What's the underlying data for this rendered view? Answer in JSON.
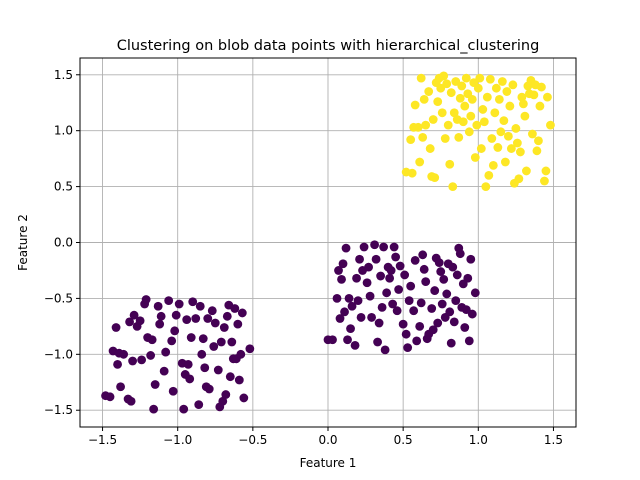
{
  "chart_data": {
    "type": "scatter",
    "title": "Clustering on blob data points with hierarchical_clustering",
    "xlabel": "Feature 1",
    "ylabel": "Feature 2",
    "xlim": [
      -1.65,
      1.65
    ],
    "ylim": [
      -1.65,
      1.65
    ],
    "xticks": [
      -1.5,
      -1.0,
      -0.5,
      0.0,
      0.5,
      1.0,
      1.5
    ],
    "yticks": [
      -1.5,
      -1.0,
      -0.5,
      0.0,
      0.5,
      1.0,
      1.5
    ],
    "xtick_labels": [
      "−1.5",
      "−1.0",
      "−0.5",
      "0.0",
      "0.5",
      "1.0",
      "1.5"
    ],
    "ytick_labels": [
      "−1.5",
      "−1.0",
      "−0.5",
      "0.0",
      "0.5",
      "1.0",
      "1.5"
    ],
    "grid": true,
    "colors": {
      "cluster_0": "#440154",
      "cluster_1": "#fde725"
    },
    "series": [
      {
        "cluster": 0,
        "color": "#440154",
        "points": [
          [
            -1.48,
            -1.37
          ],
          [
            -1.45,
            -1.38
          ],
          [
            -1.43,
            -0.97
          ],
          [
            -1.41,
            -0.76
          ],
          [
            -1.4,
            -1.09
          ],
          [
            -1.39,
            -0.99
          ],
          [
            -1.38,
            -1.29
          ],
          [
            -1.36,
            -1.0
          ],
          [
            -1.33,
            -1.4
          ],
          [
            -1.32,
            -0.71
          ],
          [
            -1.31,
            -1.42
          ],
          [
            -1.3,
            -1.06
          ],
          [
            -1.29,
            -0.65
          ],
          [
            -1.27,
            -0.75
          ],
          [
            -1.25,
            -0.7
          ],
          [
            -1.24,
            -1.05
          ],
          [
            -1.22,
            -0.55
          ],
          [
            -1.21,
            -0.51
          ],
          [
            -1.2,
            -0.85
          ],
          [
            -1.18,
            -1.01
          ],
          [
            -1.17,
            -0.87
          ],
          [
            -1.16,
            -1.49
          ],
          [
            -1.15,
            -1.27
          ],
          [
            -1.13,
            -0.57
          ],
          [
            -1.12,
            -0.73
          ],
          [
            -1.11,
            -0.66
          ],
          [
            -1.09,
            -1.15
          ],
          [
            -1.08,
            -0.98
          ],
          [
            -1.06,
            -0.52
          ],
          [
            -1.04,
            -0.88
          ],
          [
            -1.03,
            -1.33
          ],
          [
            -1.02,
            -0.79
          ],
          [
            -1.01,
            -0.65
          ],
          [
            -0.99,
            -0.55
          ],
          [
            -0.97,
            -1.08
          ],
          [
            -0.96,
            -1.49
          ],
          [
            -0.95,
            -1.18
          ],
          [
            -0.94,
            -0.69
          ],
          [
            -0.93,
            -1.09
          ],
          [
            -0.92,
            -1.22
          ],
          [
            -0.91,
            -0.85
          ],
          [
            -0.9,
            -0.53
          ],
          [
            -0.88,
            -0.68
          ],
          [
            -0.86,
            -1.45
          ],
          [
            -0.85,
            -0.57
          ],
          [
            -0.84,
            -1.0
          ],
          [
            -0.83,
            -0.86
          ],
          [
            -0.82,
            -1.12
          ],
          [
            -0.81,
            -1.29
          ],
          [
            -0.8,
            -0.68
          ],
          [
            -0.79,
            -1.31
          ],
          [
            -0.77,
            -0.61
          ],
          [
            -0.76,
            -0.93
          ],
          [
            -0.75,
            -0.72
          ],
          [
            -0.73,
            -1.14
          ],
          [
            -0.72,
            -1.47
          ],
          [
            -0.71,
            -0.89
          ],
          [
            -0.7,
            -1.42
          ],
          [
            -0.69,
            -0.76
          ],
          [
            -0.68,
            -1.36
          ],
          [
            -0.67,
            -0.66
          ],
          [
            -0.66,
            -0.56
          ],
          [
            -0.65,
            -1.2
          ],
          [
            -0.64,
            -0.89
          ],
          [
            -0.63,
            -1.04
          ],
          [
            -0.62,
            -0.59
          ],
          [
            -0.61,
            -1.04
          ],
          [
            -0.6,
            -0.73
          ],
          [
            -0.59,
            -1.23
          ],
          [
            -0.58,
            -1.0
          ],
          [
            -0.57,
            -0.63
          ],
          [
            -0.56,
            -1.39
          ],
          [
            -0.52,
            -0.95
          ],
          [
            0.0,
            -0.87
          ],
          [
            0.03,
            -0.87
          ],
          [
            0.06,
            -0.5
          ],
          [
            0.07,
            -0.25
          ],
          [
            0.08,
            -0.68
          ],
          [
            0.09,
            -0.33
          ],
          [
            0.1,
            -0.19
          ],
          [
            0.11,
            -0.62
          ],
          [
            0.12,
            -0.05
          ],
          [
            0.13,
            -0.87
          ],
          [
            0.14,
            -0.5
          ],
          [
            0.15,
            -0.77
          ],
          [
            0.16,
            -0.57
          ],
          [
            0.18,
            -0.92
          ],
          [
            0.19,
            -0.32
          ],
          [
            0.2,
            -0.52
          ],
          [
            0.21,
            -0.15
          ],
          [
            0.22,
            -0.67
          ],
          [
            0.23,
            -0.25
          ],
          [
            0.24,
            -0.04
          ],
          [
            0.26,
            -0.36
          ],
          [
            0.27,
            -0.22
          ],
          [
            0.28,
            -0.48
          ],
          [
            0.29,
            -0.67
          ],
          [
            0.31,
            -0.02
          ],
          [
            0.32,
            -0.15
          ],
          [
            0.33,
            -0.89
          ],
          [
            0.34,
            -0.72
          ],
          [
            0.35,
            -0.3
          ],
          [
            0.36,
            -0.58
          ],
          [
            0.37,
            -0.04
          ],
          [
            0.38,
            -0.96
          ],
          [
            0.39,
            -0.45
          ],
          [
            0.4,
            -0.22
          ],
          [
            0.41,
            -0.32
          ],
          [
            0.42,
            -0.25
          ],
          [
            0.43,
            -0.55
          ],
          [
            0.44,
            -0.04
          ],
          [
            0.45,
            -0.13
          ],
          [
            0.46,
            -0.61
          ],
          [
            0.47,
            -0.42
          ],
          [
            0.48,
            -0.21
          ],
          [
            0.5,
            -0.73
          ],
          [
            0.51,
            -0.29
          ],
          [
            0.52,
            -0.82
          ],
          [
            0.53,
            -0.94
          ],
          [
            0.54,
            -0.52
          ],
          [
            0.55,
            -0.39
          ],
          [
            0.57,
            -0.61
          ],
          [
            0.58,
            -0.16
          ],
          [
            0.59,
            -0.88
          ],
          [
            0.61,
            -0.75
          ],
          [
            0.62,
            -0.54
          ],
          [
            0.63,
            -0.11
          ],
          [
            0.64,
            -0.24
          ],
          [
            0.65,
            -0.35
          ],
          [
            0.66,
            -0.86
          ],
          [
            0.67,
            -0.82
          ],
          [
            0.69,
            -0.59
          ],
          [
            0.7,
            -0.78
          ],
          [
            0.71,
            -0.43
          ],
          [
            0.72,
            -0.14
          ],
          [
            0.73,
            -0.72
          ],
          [
            0.74,
            -0.18
          ],
          [
            0.75,
            -0.26
          ],
          [
            0.76,
            -0.55
          ],
          [
            0.77,
            -0.33
          ],
          [
            0.78,
            -0.67
          ],
          [
            0.79,
            -0.46
          ],
          [
            0.8,
            -0.19
          ],
          [
            0.81,
            -0.62
          ],
          [
            0.82,
            -0.9
          ],
          [
            0.83,
            -0.22
          ],
          [
            0.84,
            -0.71
          ],
          [
            0.85,
            -0.52
          ],
          [
            0.86,
            -0.29
          ],
          [
            0.87,
            -0.05
          ],
          [
            0.88,
            -0.1
          ],
          [
            0.89,
            -0.58
          ],
          [
            0.9,
            -0.37
          ],
          [
            0.91,
            -0.76
          ],
          [
            0.92,
            -0.6
          ],
          [
            0.93,
            -0.32
          ],
          [
            0.94,
            -0.88
          ],
          [
            0.95,
            -0.15
          ],
          [
            0.96,
            -0.64
          ],
          [
            0.98,
            -0.45
          ]
        ]
      },
      {
        "cluster": 1,
        "color": "#fde725",
        "points": [
          [
            0.52,
            0.63
          ],
          [
            0.55,
            0.92
          ],
          [
            0.56,
            0.62
          ],
          [
            0.57,
            1.03
          ],
          [
            0.58,
            1.23
          ],
          [
            0.6,
            1.03
          ],
          [
            0.61,
            0.72
          ],
          [
            0.62,
            1.47
          ],
          [
            0.63,
            0.94
          ],
          [
            0.64,
            1.28
          ],
          [
            0.65,
            1.05
          ],
          [
            0.67,
            1.35
          ],
          [
            0.68,
            0.84
          ],
          [
            0.69,
            0.59
          ],
          [
            0.7,
            1.1
          ],
          [
            0.71,
            0.58
          ],
          [
            0.72,
            1.43
          ],
          [
            0.73,
            1.26
          ],
          [
            0.74,
            1.47
          ],
          [
            0.75,
            1.38
          ],
          [
            0.76,
            1.16
          ],
          [
            0.77,
            1.49
          ],
          [
            0.78,
            0.93
          ],
          [
            0.79,
            1.42
          ],
          [
            0.8,
            1.05
          ],
          [
            0.81,
            0.7
          ],
          [
            0.82,
            1.34
          ],
          [
            0.83,
            0.5
          ],
          [
            0.84,
            1.16
          ],
          [
            0.85,
            1.44
          ],
          [
            0.86,
            1.1
          ],
          [
            0.87,
            0.94
          ],
          [
            0.88,
            1.29
          ],
          [
            0.89,
            1.4
          ],
          [
            0.9,
            1.08
          ],
          [
            0.91,
            1.22
          ],
          [
            0.92,
            1.47
          ],
          [
            0.93,
            1.33
          ],
          [
            0.94,
            0.99
          ],
          [
            0.95,
            1.13
          ],
          [
            0.96,
            1.28
          ],
          [
            0.97,
            1.43
          ],
          [
            0.98,
            0.76
          ],
          [
            0.99,
            1.05
          ],
          [
            1.0,
            1.38
          ],
          [
            1.01,
            1.47
          ],
          [
            1.02,
            0.84
          ],
          [
            1.03,
            1.19
          ],
          [
            1.04,
            1.08
          ],
          [
            1.05,
            0.5
          ],
          [
            1.06,
            1.3
          ],
          [
            1.07,
            0.6
          ],
          [
            1.08,
            1.46
          ],
          [
            1.09,
            0.93
          ],
          [
            1.1,
            0.69
          ],
          [
            1.11,
            1.16
          ],
          [
            1.12,
            1.38
          ],
          [
            1.13,
            0.85
          ],
          [
            1.14,
            1.28
          ],
          [
            1.15,
            0.99
          ],
          [
            1.16,
            1.44
          ],
          [
            1.17,
            1.09
          ],
          [
            1.18,
            0.72
          ],
          [
            1.19,
            1.35
          ],
          [
            1.2,
            0.95
          ],
          [
            1.21,
            1.22
          ],
          [
            1.22,
            0.84
          ],
          [
            1.23,
            1.41
          ],
          [
            1.24,
            0.53
          ],
          [
            1.25,
            1.02
          ],
          [
            1.26,
            0.89
          ],
          [
            1.27,
            0.57
          ],
          [
            1.28,
            0.81
          ],
          [
            1.29,
            1.3
          ],
          [
            1.3,
            1.24
          ],
          [
            1.31,
            1.13
          ],
          [
            1.32,
            0.64
          ],
          [
            1.33,
            1.4
          ],
          [
            1.34,
            1.33
          ],
          [
            1.35,
            1.45
          ],
          [
            1.36,
            0.97
          ],
          [
            1.37,
            1.32
          ],
          [
            1.38,
            1.41
          ],
          [
            1.39,
            0.82
          ],
          [
            1.4,
            0.91
          ],
          [
            1.41,
            1.22
          ],
          [
            1.42,
            1.39
          ],
          [
            1.44,
            0.55
          ],
          [
            1.45,
            0.64
          ],
          [
            1.46,
            1.3
          ],
          [
            1.48,
            1.05
          ]
        ]
      }
    ]
  }
}
